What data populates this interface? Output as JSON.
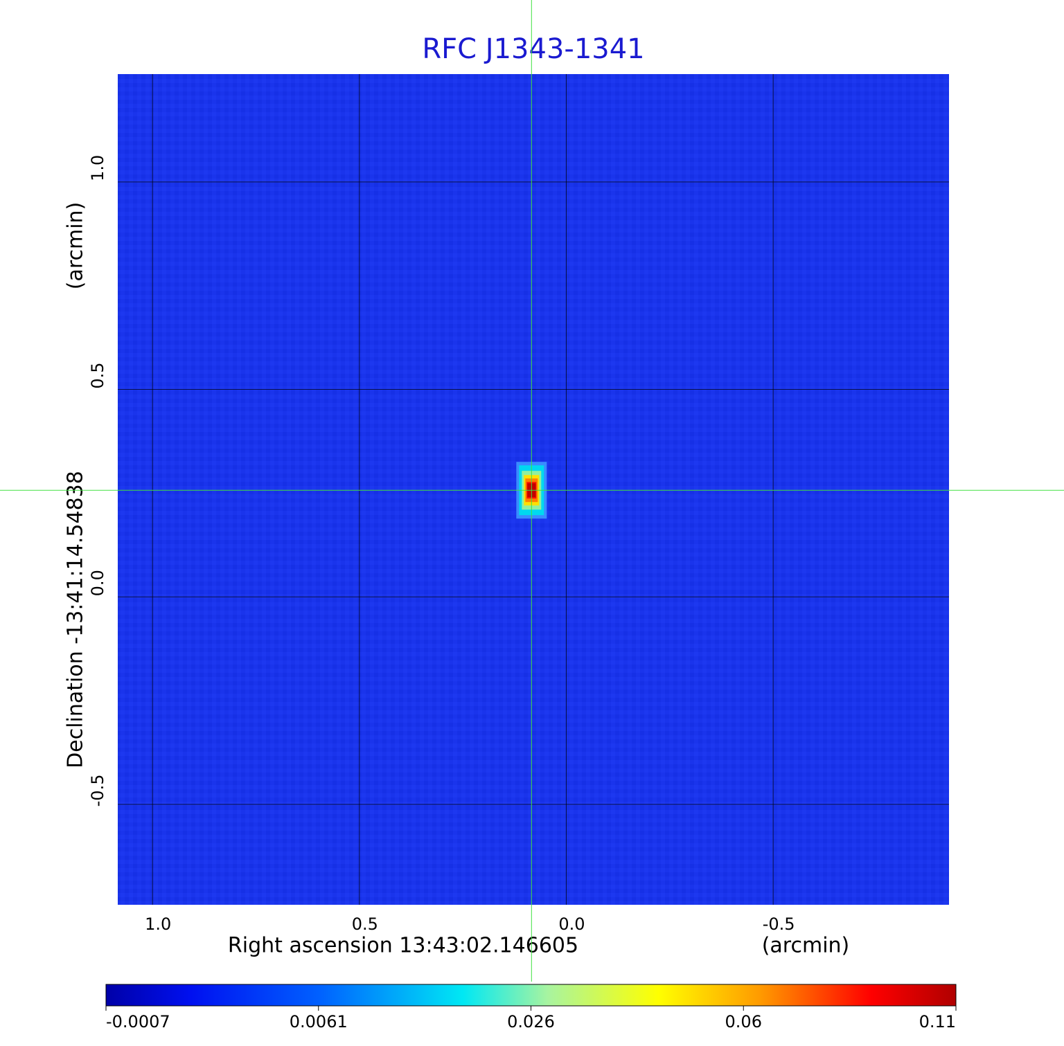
{
  "chart_data": {
    "type": "heatmap",
    "title": "RFC J1343-1341",
    "x_label": "Right ascension  13:43:02.146605",
    "x_unit": "(arcmin)",
    "y_label": "Declination  -13:41:14.54838",
    "y_unit": "(arcmin)",
    "xlim": [
      1.084,
      -0.925
    ],
    "xticks": [
      {
        "value": 1,
        "label": "1.0"
      },
      {
        "value": 0.5,
        "label": "0.5"
      },
      {
        "value": 0,
        "label": "0.0"
      },
      {
        "value": -0.5,
        "label": "-0.5"
      }
    ],
    "ylim": [
      -0.742,
      1.26
    ],
    "yticks": [
      {
        "value": -0.5,
        "label": "-0.5"
      },
      {
        "value": 0,
        "label": "0.0"
      },
      {
        "value": 0.5,
        "label": "0.5"
      },
      {
        "value": 1,
        "label": "1.0"
      }
    ],
    "grid": true,
    "colormap": "jet",
    "colorbar_ticks": [
      -0.0007,
      0.0061,
      0.026,
      0.06,
      0.11
    ],
    "peak": {
      "x": 0.084,
      "y": 0.257,
      "value": 0.11
    }
  }
}
